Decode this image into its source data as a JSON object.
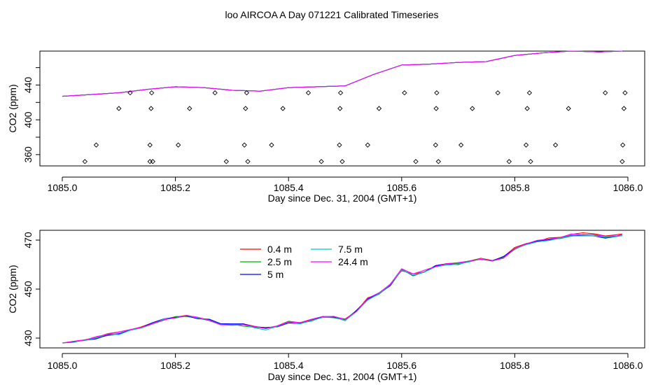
{
  "title": "loo AIRCOA A  Day 071221  Calibrated Timeseries",
  "chart_data": [
    {
      "type": "line",
      "panel": "top",
      "xlabel": "Day since Dec. 31, 2004 (GMT+1)",
      "ylabel": "CO2 (ppm)",
      "xlim": [
        1085.0,
        1086.0
      ],
      "ylim": [
        347,
        479
      ],
      "xticks": [
        "1085.0",
        "1085.2",
        "1085.4",
        "1085.6",
        "1085.8",
        "1086.0"
      ],
      "yticks": [
        "360",
        "400",
        "440"
      ],
      "ytick_values": [
        360,
        400,
        440
      ],
      "grid": false,
      "legend": "none",
      "series": [
        {
          "color": "#ff0000",
          "x": [
            1085.0,
            1085.05,
            1085.1,
            1085.15,
            1085.2,
            1085.25,
            1085.3,
            1085.35,
            1085.4,
            1085.45,
            1085.5,
            1085.55,
            1085.6,
            1085.65,
            1085.7,
            1085.75,
            1085.8,
            1085.85,
            1085.9,
            1085.95,
            1085.99
          ],
          "y": [
            427,
            429,
            431,
            435,
            438,
            437,
            434,
            433,
            437,
            438,
            439,
            452,
            463,
            464,
            466,
            467,
            474,
            477,
            479,
            478,
            479
          ]
        },
        {
          "color": "#00b000",
          "x": [
            1085.0,
            1085.05,
            1085.1,
            1085.15,
            1085.2,
            1085.25,
            1085.3,
            1085.35,
            1085.4,
            1085.45,
            1085.5,
            1085.55,
            1085.6,
            1085.65,
            1085.7,
            1085.75,
            1085.8,
            1085.85,
            1085.9,
            1085.95,
            1085.99
          ],
          "y": [
            427,
            429,
            431,
            435,
            438,
            437,
            434,
            433,
            437,
            438,
            439,
            452,
            463,
            464,
            466,
            467,
            474,
            477,
            479,
            478,
            479
          ]
        },
        {
          "color": "#0000ff",
          "x": [
            1085.0,
            1085.05,
            1085.1,
            1085.15,
            1085.2,
            1085.25,
            1085.3,
            1085.35,
            1085.4,
            1085.45,
            1085.5,
            1085.55,
            1085.6,
            1085.65,
            1085.7,
            1085.75,
            1085.8,
            1085.85,
            1085.9,
            1085.95,
            1085.99
          ],
          "y": [
            427,
            429,
            431,
            435,
            438,
            437,
            434,
            433,
            437,
            438,
            439,
            452,
            463,
            464,
            466,
            467,
            474,
            477,
            479,
            478,
            479
          ]
        },
        {
          "color": "#00c8c8",
          "x": [
            1085.0,
            1085.05,
            1085.1,
            1085.15,
            1085.2,
            1085.25,
            1085.3,
            1085.35,
            1085.4,
            1085.45,
            1085.5,
            1085.55,
            1085.6,
            1085.65,
            1085.7,
            1085.75,
            1085.8,
            1085.85,
            1085.9,
            1085.95,
            1085.99
          ],
          "y": [
            427,
            429,
            431,
            435,
            438,
            437,
            434,
            433,
            437,
            438,
            439,
            452,
            463,
            464,
            466,
            467,
            474,
            477,
            479,
            478,
            479
          ]
        },
        {
          "color": "#ff00ff",
          "x": [
            1085.0,
            1085.05,
            1085.1,
            1085.15,
            1085.2,
            1085.25,
            1085.3,
            1085.35,
            1085.4,
            1085.45,
            1085.5,
            1085.55,
            1085.6,
            1085.65,
            1085.7,
            1085.75,
            1085.8,
            1085.85,
            1085.9,
            1085.95,
            1085.99
          ],
          "y": [
            427,
            429,
            431,
            435,
            438,
            437,
            434,
            433,
            437,
            438,
            439,
            452,
            463,
            464,
            466,
            467,
            474,
            477,
            479,
            478,
            479
          ]
        }
      ],
      "points": {
        "marker": "diamond",
        "x": [
          1085.04,
          1085.06,
          1085.1,
          1085.12,
          1085.155,
          1085.155,
          1085.157,
          1085.158,
          1085.16,
          1085.205,
          1085.225,
          1085.27,
          1085.29,
          1085.322,
          1085.324,
          1085.326,
          1085.328,
          1085.37,
          1085.39,
          1085.435,
          1085.458,
          1085.49,
          1085.491,
          1085.492,
          1085.495,
          1085.54,
          1085.56,
          1085.605,
          1085.625,
          1085.66,
          1085.661,
          1085.662,
          1085.665,
          1085.705,
          1085.725,
          1085.77,
          1085.79,
          1085.82,
          1085.822,
          1085.826,
          1085.828,
          1085.872,
          1085.895,
          1085.96,
          1085.99,
          1085.991,
          1085.993,
          1085.995
        ],
        "y": [
          352,
          371,
          413,
          431,
          352,
          371,
          413,
          431,
          352,
          371,
          413,
          431,
          352,
          371,
          413,
          431,
          352,
          371,
          413,
          431,
          352,
          371,
          413,
          431,
          352,
          371,
          413,
          431,
          352,
          371,
          413,
          431,
          352,
          371,
          413,
          431,
          352,
          371,
          413,
          431,
          352,
          371,
          413,
          431,
          352,
          371,
          413,
          431
        ]
      }
    },
    {
      "type": "line",
      "panel": "bottom",
      "xlabel": "Day since Dec. 31, 2004 (GMT+1)",
      "ylabel": "CO2 (ppm)",
      "xlim": [
        1085.0,
        1086.0
      ],
      "ylim": [
        426,
        474
      ],
      "xticks": [
        "1085.0",
        "1085.2",
        "1085.4",
        "1085.6",
        "1085.8",
        "1086.0"
      ],
      "yticks": [
        "430",
        "450",
        "470"
      ],
      "ytick_values": [
        430,
        450,
        470
      ],
      "grid": false,
      "legend": "top-left",
      "series": [
        {
          "name": "0.4 m",
          "color": "#ff0000",
          "x": [
            1085.0,
            1085.02,
            1085.04,
            1085.06,
            1085.08,
            1085.1,
            1085.12,
            1085.14,
            1085.16,
            1085.18,
            1085.2,
            1085.22,
            1085.24,
            1085.26,
            1085.28,
            1085.3,
            1085.32,
            1085.34,
            1085.36,
            1085.38,
            1085.4,
            1085.42,
            1085.44,
            1085.46,
            1085.48,
            1085.5,
            1085.52,
            1085.54,
            1085.56,
            1085.58,
            1085.6,
            1085.62,
            1085.64,
            1085.66,
            1085.68,
            1085.7,
            1085.72,
            1085.74,
            1085.76,
            1085.78,
            1085.8,
            1085.82,
            1085.84,
            1085.86,
            1085.88,
            1085.9,
            1085.92,
            1085.94,
            1085.96,
            1085.98,
            1085.99
          ],
          "y": [
            428.0,
            428.7,
            429.3,
            430.2,
            431.8,
            432.5,
            433.4,
            434.6,
            436.3,
            437.8,
            438.6,
            439.3,
            438.3,
            437.5,
            435.5,
            435.4,
            435.8,
            434.8,
            434.0,
            435.0,
            436.9,
            436.3,
            437.4,
            438.4,
            438.6,
            437.8,
            441.0,
            446.5,
            448.0,
            452.1,
            457.5,
            456.2,
            457.0,
            459.6,
            460.4,
            460.7,
            461.5,
            462.6,
            461.7,
            463.1,
            467.0,
            468.6,
            469.4,
            470.9,
            471.1,
            472.3,
            473.0,
            472.6,
            471.7,
            472.2,
            472.5
          ]
        },
        {
          "name": "2.5 m",
          "color": "#00b000",
          "x": [
            1085.0,
            1085.02,
            1085.04,
            1085.06,
            1085.08,
            1085.1,
            1085.12,
            1085.14,
            1085.16,
            1085.18,
            1085.2,
            1085.22,
            1085.24,
            1085.26,
            1085.28,
            1085.3,
            1085.32,
            1085.34,
            1085.36,
            1085.38,
            1085.4,
            1085.42,
            1085.44,
            1085.46,
            1085.48,
            1085.5,
            1085.52,
            1085.54,
            1085.56,
            1085.58,
            1085.6,
            1085.62,
            1085.64,
            1085.66,
            1085.68,
            1085.7,
            1085.72,
            1085.74,
            1085.76,
            1085.78,
            1085.8,
            1085.82,
            1085.84,
            1085.86,
            1085.88,
            1085.9,
            1085.92,
            1085.94,
            1085.96,
            1085.98,
            1085.99
          ],
          "y": [
            428.0,
            428.3,
            429.3,
            430.0,
            431.0,
            431.7,
            433.4,
            434.2,
            435.8,
            437.3,
            438.8,
            438.8,
            438.1,
            437.1,
            435.5,
            435.7,
            434.9,
            434.4,
            434.1,
            434.8,
            436.9,
            436.1,
            436.9,
            438.6,
            438.3,
            437.5,
            441.3,
            445.9,
            447.9,
            451.8,
            458.1,
            455.4,
            457.0,
            459.4,
            460.2,
            460.5,
            461.5,
            462.4,
            461.4,
            462.8,
            466.2,
            468.3,
            469.9,
            470.3,
            470.6,
            471.6,
            472.3,
            472.1,
            471.0,
            471.6,
            472.3
          ]
        },
        {
          "name": "5 m",
          "color": "#0000ff",
          "x": [
            1085.0,
            1085.02,
            1085.04,
            1085.06,
            1085.08,
            1085.1,
            1085.12,
            1085.14,
            1085.16,
            1085.18,
            1085.2,
            1085.22,
            1085.24,
            1085.26,
            1085.28,
            1085.3,
            1085.32,
            1085.34,
            1085.36,
            1085.38,
            1085.4,
            1085.42,
            1085.44,
            1085.46,
            1085.48,
            1085.5,
            1085.52,
            1085.54,
            1085.56,
            1085.58,
            1085.6,
            1085.62,
            1085.64,
            1085.66,
            1085.68,
            1085.7,
            1085.72,
            1085.74,
            1085.76,
            1085.78,
            1085.8,
            1085.82,
            1085.84,
            1085.86,
            1085.88,
            1085.9,
            1085.92,
            1085.94,
            1085.96,
            1085.98,
            1085.99
          ],
          "y": [
            428.0,
            428.5,
            429.1,
            429.7,
            431.3,
            431.8,
            433.2,
            434.3,
            436.3,
            437.9,
            438.4,
            439.0,
            437.9,
            437.7,
            435.9,
            435.8,
            435.8,
            434.6,
            434.3,
            434.6,
            436.2,
            435.9,
            437.1,
            438.8,
            438.7,
            437.1,
            441.3,
            445.9,
            448.2,
            451.4,
            457.9,
            455.6,
            456.9,
            459.6,
            460.3,
            460.0,
            461.4,
            462.2,
            461.5,
            463.3,
            466.5,
            468.4,
            469.6,
            470.1,
            470.9,
            471.9,
            471.8,
            471.7,
            470.8,
            471.5,
            471.9
          ]
        },
        {
          "name": "7.5 m",
          "color": "#00c8c8",
          "x": [
            1085.0,
            1085.02,
            1085.04,
            1085.06,
            1085.08,
            1085.1,
            1085.12,
            1085.14,
            1085.16,
            1085.18,
            1085.2,
            1085.22,
            1085.24,
            1085.26,
            1085.28,
            1085.3,
            1085.32,
            1085.34,
            1085.36,
            1085.38,
            1085.4,
            1085.42,
            1085.44,
            1085.46,
            1085.48,
            1085.5,
            1085.52,
            1085.54,
            1085.56,
            1085.58,
            1085.6,
            1085.62,
            1085.64,
            1085.66,
            1085.68,
            1085.7,
            1085.72,
            1085.74,
            1085.76,
            1085.78,
            1085.8,
            1085.82,
            1085.84,
            1085.86,
            1085.88,
            1085.9,
            1085.92,
            1085.94,
            1085.96,
            1085.98,
            1085.99
          ],
          "y": [
            428.0,
            428.6,
            429.0,
            430.1,
            431.7,
            431.4,
            433.2,
            434.1,
            435.8,
            437.8,
            438.1,
            439.2,
            438.2,
            437.3,
            435.5,
            435.2,
            435.5,
            434.2,
            433.3,
            434.8,
            436.6,
            435.8,
            437.1,
            438.4,
            438.9,
            437.1,
            440.8,
            445.5,
            448.1,
            451.8,
            457.8,
            455.7,
            456.9,
            459.1,
            459.8,
            460.2,
            461.1,
            462.4,
            461.4,
            462.6,
            466.5,
            468.1,
            469.3,
            469.8,
            470.8,
            471.7,
            471.7,
            471.7,
            471.3,
            471.4,
            471.9
          ]
        },
        {
          "name": "24.4 m",
          "color": "#ff00ff",
          "x": [
            1085.0,
            1085.02,
            1085.04,
            1085.06,
            1085.08,
            1085.1,
            1085.12,
            1085.14,
            1085.16,
            1085.18,
            1085.2,
            1085.22,
            1085.24,
            1085.26,
            1085.28,
            1085.3,
            1085.32,
            1085.34,
            1085.36,
            1085.38,
            1085.4,
            1085.42,
            1085.44,
            1085.46,
            1085.48,
            1085.5,
            1085.52,
            1085.54,
            1085.56,
            1085.58,
            1085.6,
            1085.62,
            1085.64,
            1085.66,
            1085.68,
            1085.7,
            1085.72,
            1085.74,
            1085.76,
            1085.78,
            1085.8,
            1085.82,
            1085.84,
            1085.86,
            1085.88,
            1085.9,
            1085.92,
            1085.94,
            1085.96,
            1085.98,
            1085.99
          ],
          "y": [
            428.0,
            428.7,
            429.2,
            430.6,
            431.5,
            432.5,
            433.5,
            434.4,
            435.9,
            437.5,
            438.3,
            439.2,
            438.5,
            437.2,
            435.4,
            435.5,
            435.5,
            434.7,
            433.9,
            435.0,
            436.6,
            436.3,
            437.7,
            438.8,
            438.9,
            437.7,
            440.9,
            446.2,
            448.5,
            452.0,
            458.3,
            456.2,
            457.7,
            459.2,
            460.3,
            460.8,
            461.4,
            462.2,
            461.6,
            462.6,
            466.6,
            468.5,
            469.9,
            470.4,
            471.0,
            472.5,
            472.2,
            472.2,
            471.6,
            471.7,
            472.3
          ]
        }
      ]
    }
  ]
}
